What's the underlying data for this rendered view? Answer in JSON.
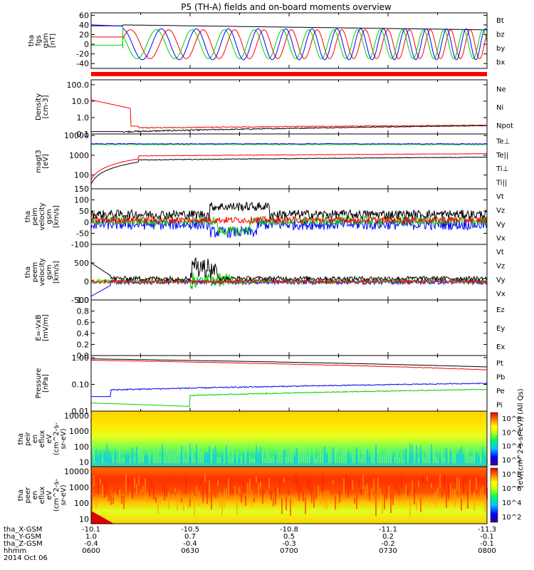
{
  "title": "P5 (TH-A) fields and on-board moments overview",
  "colors": {
    "black": "#000000",
    "red": "#ff0000",
    "green": "#00d000",
    "blue": "#0000ff",
    "grid": "#000000"
  },
  "footer": {
    "rows": [
      {
        "label": "tha_X-GSM",
        "values": [
          "-10.1",
          "-10.5",
          "-10.8",
          "-11.1",
          "-11.3"
        ]
      },
      {
        "label": "tha_Y-GSM",
        "values": [
          "1.0",
          "0.7",
          "0.5",
          "0.2",
          "-0.1"
        ]
      },
      {
        "label": "tha_Z-GSM",
        "values": [
          "-0.4",
          "-0.4",
          "-0.3",
          "-0.2",
          "-0.1"
        ]
      },
      {
        "label": "hhmm",
        "values": [
          "0600",
          "0630",
          "0700",
          "0730",
          "0800"
        ]
      }
    ],
    "date": "2014 Oct 06"
  },
  "chart_data": [
    {
      "type": "line",
      "ylabel_lines": [
        "tha",
        "fgs",
        "gsm",
        "[nT]"
      ],
      "y_ticks": [
        "60",
        "40",
        "20",
        "0",
        "-20",
        "-40"
      ],
      "ylim": [
        -50,
        65
      ],
      "legend": [
        {
          "name": "Bt",
          "color": "#000000"
        },
        {
          "name": "bz",
          "color": "#ff0000"
        },
        {
          "name": "by",
          "color": "#00d000"
        },
        {
          "name": "bx",
          "color": "#0000ff"
        }
      ],
      "x_hhmm": [
        "0600",
        "0630",
        "0700",
        "0730",
        "0800"
      ],
      "series_note": "Bt ~40 nT decreasing to ~30 nT; bx/by/bz oscillate ±30 nT"
    },
    {
      "type": "line",
      "ylabel_lines": [
        "Density",
        "[cm-3]"
      ],
      "y_ticks": [
        "100.0",
        "10.0",
        "1.0",
        "0.1"
      ],
      "ylim": [
        0.1,
        200
      ],
      "log": true,
      "legend": [
        {
          "name": "Ne",
          "color": "#ff0000"
        },
        {
          "name": "Ni",
          "color": "#000000"
        },
        {
          "name": "Npot",
          "color": "#0000ff"
        }
      ]
    },
    {
      "type": "line",
      "ylabel_lines": [
        "magt3",
        "[eV]"
      ],
      "y_ticks": [
        "10000",
        "1000",
        "100"
      ],
      "ylim": [
        20,
        12000
      ],
      "log": true,
      "legend": [
        {
          "name": "Te⊥",
          "color": "#ff0000"
        },
        {
          "name": "Te||",
          "color": "#000000"
        },
        {
          "name": "Ti⊥",
          "color": "#0000ff"
        },
        {
          "name": "Ti||",
          "color": "#00d000"
        }
      ]
    },
    {
      "type": "line",
      "ylabel_lines": [
        "tha",
        "peim",
        "velocity",
        "gsm",
        "[km/s]"
      ],
      "y_ticks": [
        "150",
        "100",
        "50",
        "0",
        "-50",
        "-100"
      ],
      "ylim": [
        -100,
        150
      ],
      "legend": [
        {
          "name": "Vt",
          "color": "#000000"
        },
        {
          "name": "Vz",
          "color": "#ff0000"
        },
        {
          "name": "Vy",
          "color": "#00d000"
        },
        {
          "name": "Vx",
          "color": "#0000ff"
        }
      ]
    },
    {
      "type": "line",
      "ylabel_lines": [
        "tha",
        "peem",
        "velocity",
        "gsm",
        "[km/s]"
      ],
      "y_ticks": [
        "500",
        "0",
        "-500"
      ],
      "ylim": [
        -500,
        1000
      ],
      "legend": [
        {
          "name": "Vt",
          "color": "#000000"
        },
        {
          "name": "Vz",
          "color": "#ff0000"
        },
        {
          "name": "Vy",
          "color": "#00d000"
        },
        {
          "name": "Vx",
          "color": "#0000ff"
        }
      ]
    },
    {
      "type": "line",
      "ylabel_lines": [
        "E=-VxB",
        "[mV/m]"
      ],
      "y_ticks": [
        "1.0",
        "0.8",
        "0.6",
        "0.4",
        "0.2",
        "0.0"
      ],
      "ylim": [
        0,
        1
      ],
      "legend": [
        {
          "name": "Ez",
          "color": "#ff0000"
        },
        {
          "name": "Ey",
          "color": "#00d000"
        },
        {
          "name": "Ex",
          "color": "#0000ff"
        }
      ]
    },
    {
      "type": "line",
      "ylabel_lines": [
        "Pressure",
        "[nPa]"
      ],
      "y_ticks": [
        "1.00",
        "0.10",
        "0.01"
      ],
      "ylim": [
        0.01,
        1.2
      ],
      "log": true,
      "legend": [
        {
          "name": "Pt",
          "color": "#000000"
        },
        {
          "name": "Pb",
          "color": "#ff0000"
        },
        {
          "name": "Pe",
          "color": "#00d000"
        },
        {
          "name": "Pi",
          "color": "#0000ff"
        }
      ]
    },
    {
      "type": "heatmap",
      "ylabel_lines": [
        "tha",
        "peir",
        "en",
        "eflux",
        "eV",
        "(cm^2-s-",
        "sr-eV)"
      ],
      "y_ticks": [
        "10000",
        "1000",
        "100",
        "10"
      ],
      "ylim": [
        5,
        20000
      ],
      "log": true,
      "colorbar_ticks": [
        "10^8",
        "10^6",
        "10^4",
        "10^2"
      ],
      "colorbar_label": "[eV/(cm^2-s-sr-eV)] (All Qs)"
    },
    {
      "type": "heatmap",
      "ylabel_lines": [
        "tha",
        "peer",
        "en",
        "eflux",
        "eV",
        "(cm^2-s-",
        "sr-eV)"
      ],
      "y_ticks": [
        "10000",
        "1000",
        "100",
        "10"
      ],
      "ylim": [
        5,
        20000
      ],
      "log": true,
      "colorbar_ticks": [
        "10^8",
        "10^6",
        "10^4",
        "10^2"
      ],
      "colorbar_label": "[eV/(cm^2-s-sr-eV)] (All Qs)"
    }
  ]
}
